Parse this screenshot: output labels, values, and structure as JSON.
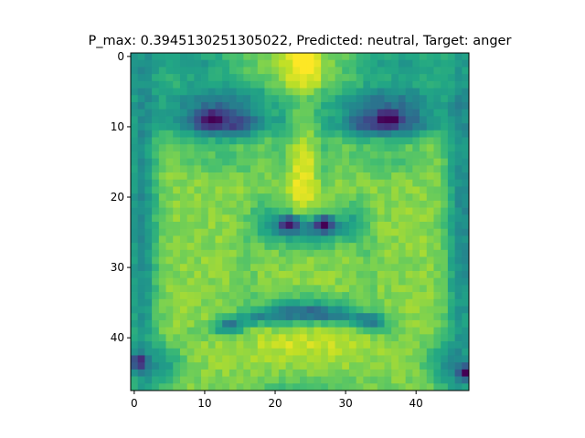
{
  "figure": {
    "title": "P_max: 0.3945130251305022, Predicted: neutral, Target: anger"
  },
  "chart_data": {
    "type": "heatmap",
    "title": "P_max: 0.3945130251305022, Predicted: neutral, Target: anger",
    "xlabel": "",
    "ylabel": "",
    "grid": false,
    "colormap": "viridis",
    "image_size": [
      48,
      48
    ],
    "xlim": [
      -0.5,
      47.5
    ],
    "ylim": [
      47.5,
      -0.5
    ],
    "x_ticks": [
      0,
      10,
      20,
      30,
      40
    ],
    "y_ticks": [
      0,
      10,
      20,
      30,
      40
    ],
    "x_tick_labels": [
      "0",
      "10",
      "20",
      "30",
      "40"
    ],
    "y_tick_labels": [
      "0",
      "10",
      "20",
      "30",
      "40"
    ],
    "image_description_colors": {
      "low": "#440154",
      "mid": "#21918c",
      "high": "#fde725"
    }
  }
}
